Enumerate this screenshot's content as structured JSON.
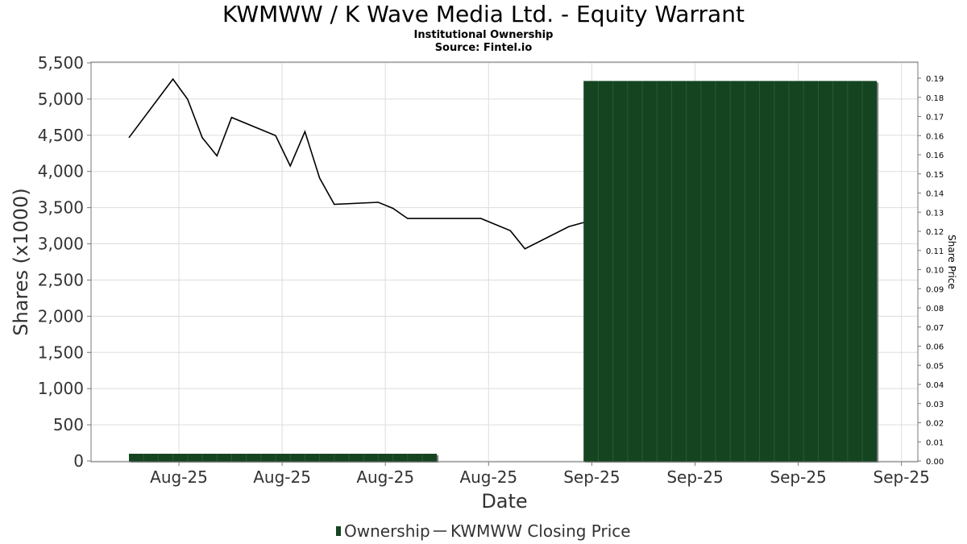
{
  "header": {
    "title": "KWMWW / K Wave Media Ltd. - Equity Warrant",
    "subtitle1": "Institutional Ownership",
    "subtitle2": "Source: Fintel.io"
  },
  "legend": {
    "ownership_label": "Ownership",
    "price_label": "KWMWW Closing Price"
  },
  "colors": {
    "bar_fill": "#154421",
    "bar_shadow": "#8a8a8a",
    "price_line": "#000000",
    "grid": "#dddddd"
  },
  "chart_data": {
    "type": "bar+line",
    "xlabel": "Date",
    "ylabel": "Shares (x1000)",
    "y2label": "Share Price",
    "ylim": [
      0,
      5500
    ],
    "y2lim": [
      0,
      0.197
    ],
    "grid": true,
    "legend_position": "bottom",
    "yticks": [
      "0",
      "500",
      "1,000",
      "1,500",
      "2,000",
      "2,500",
      "3,000",
      "3,500",
      "4,000",
      "4,500",
      "5,000",
      "5,500"
    ],
    "y2ticks": [
      "0.00",
      "0.01",
      "0.02",
      "0.03",
      "0.04",
      "0.05",
      "0.06",
      "0.07",
      "0.08",
      "0.09",
      "0.10",
      "0.11",
      "0.12",
      "0.13",
      "0.14",
      "0.15",
      "0.16",
      "0.16",
      "0.17",
      "0.18",
      "0.19"
    ],
    "xticks": [
      "Aug-25",
      "Aug-25",
      "Aug-25",
      "Aug-25",
      "Sep-25",
      "Sep-25",
      "Sep-25",
      "Sep-25"
    ],
    "ownership": [
      {
        "start": 0.0,
        "end": 21.0,
        "value": 100
      },
      {
        "start": 31.0,
        "end": 51.0,
        "value": 5250
      }
    ],
    "price": {
      "x": [
        0,
        3,
        4,
        5,
        6,
        7,
        10,
        11,
        12,
        13,
        14,
        17,
        18,
        19,
        20,
        21,
        24,
        25,
        26,
        27,
        30,
        31
      ],
      "y": [
        0.16,
        0.189,
        0.179,
        0.16,
        0.151,
        0.17,
        0.161,
        0.146,
        0.163,
        0.14,
        0.127,
        0.128,
        0.125,
        0.12,
        0.12,
        0.12,
        0.12,
        0.117,
        0.114,
        0.105,
        0.116,
        0.118
      ]
    }
  }
}
